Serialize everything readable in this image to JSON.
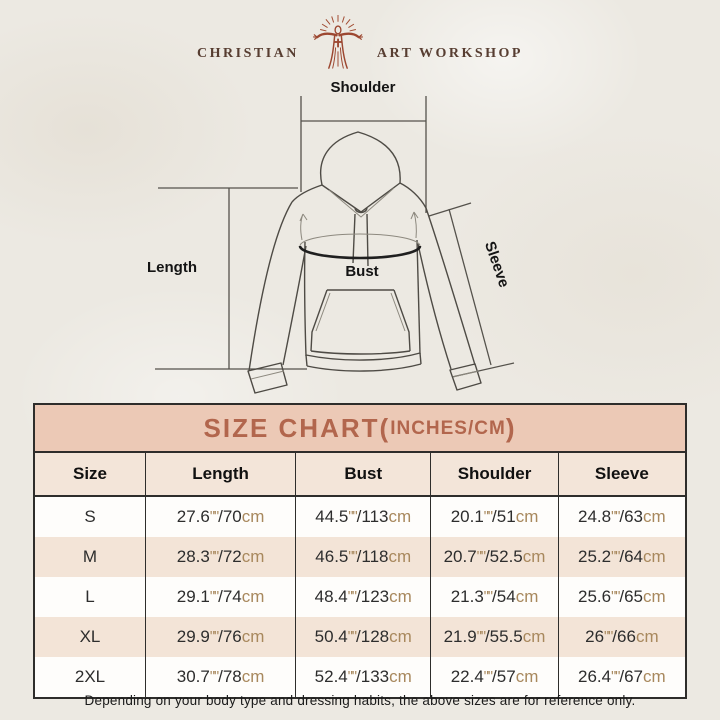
{
  "brand": {
    "left": "CHRISTIAN",
    "right": "ART WORKSHOP"
  },
  "diagram": {
    "labels": {
      "shoulder": "Shoulder",
      "length": "Length",
      "bust": "Bust",
      "sleeve": "Sleeve"
    }
  },
  "size_table": {
    "banner": {
      "prefix": "SIZE CHART(",
      "small": "INCHES/CM",
      "suffix": ")"
    },
    "columns": [
      "Size",
      "Length",
      "Bust",
      "Shoulder",
      "Sleeve"
    ],
    "unit_inch": "\"",
    "unit_cm": "cm",
    "slash": "/",
    "rows": [
      {
        "size": "S",
        "measurements": [
          {
            "in": "27.6",
            "cm": "70"
          },
          {
            "in": "44.5",
            "cm": "113"
          },
          {
            "in": "20.1",
            "cm": "51"
          },
          {
            "in": "24.8",
            "cm": "63"
          }
        ]
      },
      {
        "size": "M",
        "measurements": [
          {
            "in": "28.3",
            "cm": "72"
          },
          {
            "in": "46.5",
            "cm": "118"
          },
          {
            "in": "20.7",
            "cm": "52.5"
          },
          {
            "in": "25.2",
            "cm": "64"
          }
        ]
      },
      {
        "size": "L",
        "measurements": [
          {
            "in": "29.1",
            "cm": "74"
          },
          {
            "in": "48.4",
            "cm": "123"
          },
          {
            "in": "21.3",
            "cm": "54"
          },
          {
            "in": "25.6",
            "cm": "65"
          }
        ]
      },
      {
        "size": "XL",
        "measurements": [
          {
            "in": "29.9",
            "cm": "76"
          },
          {
            "in": "50.4",
            "cm": "128"
          },
          {
            "in": "21.9",
            "cm": "55.5"
          },
          {
            "in": "26",
            "cm": "66"
          }
        ]
      },
      {
        "size": "2XL",
        "measurements": [
          {
            "in": "30.7",
            "cm": "78"
          },
          {
            "in": "52.4",
            "cm": "133"
          },
          {
            "in": "22.4",
            "cm": "57"
          },
          {
            "in": "26.4",
            "cm": "67"
          }
        ]
      }
    ]
  },
  "footer": {
    "note": "Depending on your body type and dressing habits, the above sizes are for reference only."
  },
  "colors": {
    "page_bg": "#ece9e2",
    "banner_bg": "#ecc9b6",
    "banner_text": "#b2664d",
    "row_alt_bg": "#f3e4d7",
    "unit_text": "#a8885d",
    "border": "#2e2d2b",
    "logo_figure": "#9c4730",
    "brand_text": "#573d31",
    "diagram_line": "#4e4b45"
  }
}
